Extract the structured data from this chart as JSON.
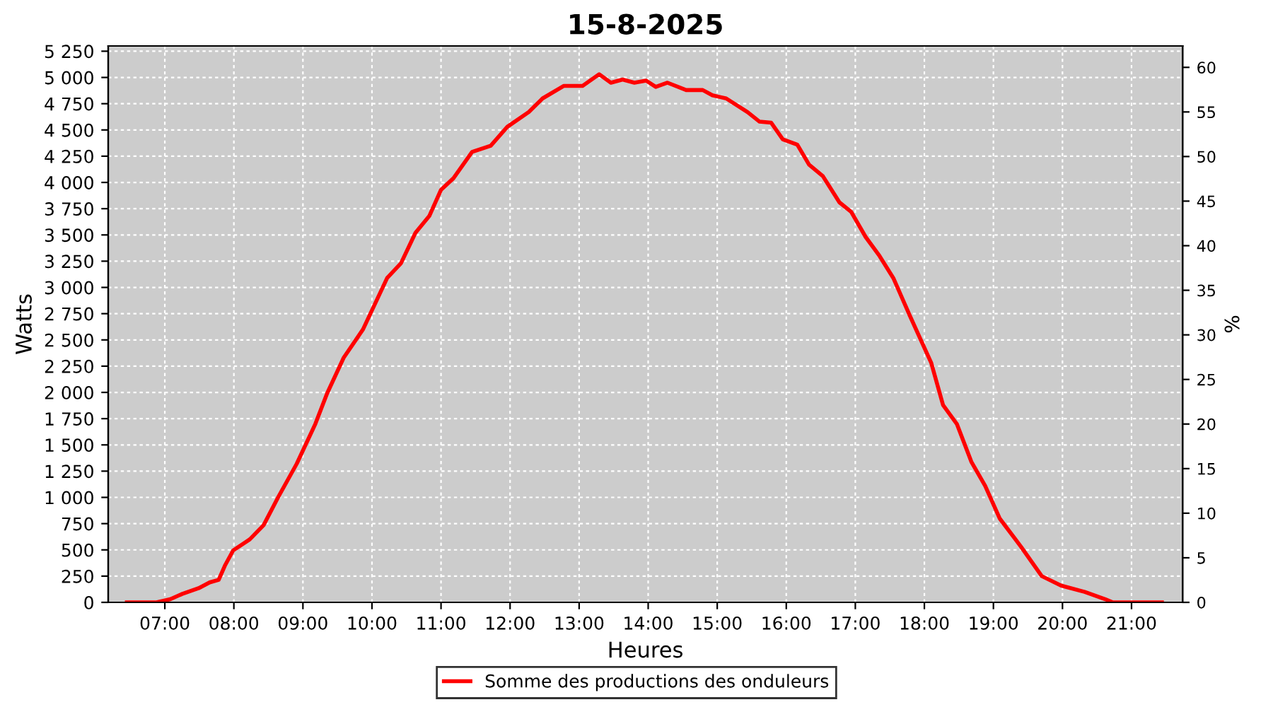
{
  "chart_data": {
    "type": "line",
    "title": "15-8-2025",
    "xlabel": "Heures",
    "ylabel": "Watts",
    "y2label": "%",
    "xlim": [
      6.18,
      21.74
    ],
    "xticks": [
      {
        "value": 7,
        "label": "07:00"
      },
      {
        "value": 8,
        "label": "08:00"
      },
      {
        "value": 9,
        "label": "09:00"
      },
      {
        "value": 10,
        "label": "10:00"
      },
      {
        "value": 11,
        "label": "11:00"
      },
      {
        "value": 12,
        "label": "12:00"
      },
      {
        "value": 13,
        "label": "13:00"
      },
      {
        "value": 14,
        "label": "14:00"
      },
      {
        "value": 15,
        "label": "15:00"
      },
      {
        "value": 16,
        "label": "16:00"
      },
      {
        "value": 17,
        "label": "17:00"
      },
      {
        "value": 18,
        "label": "18:00"
      },
      {
        "value": 19,
        "label": "19:00"
      },
      {
        "value": 20,
        "label": "20:00"
      },
      {
        "value": 21,
        "label": "21:00"
      }
    ],
    "ylim": [
      0,
      5300
    ],
    "yticks": [
      0,
      250,
      500,
      750,
      {
        "value": 1000,
        "label": "1 000"
      },
      {
        "value": 1250,
        "label": "1 250"
      },
      {
        "value": 1500,
        "label": "1 500"
      },
      {
        "value": 1750,
        "label": "1 750"
      },
      {
        "value": 2000,
        "label": "2 000"
      },
      {
        "value": 2250,
        "label": "2 250"
      },
      {
        "value": 2500,
        "label": "2 500"
      },
      {
        "value": 2750,
        "label": "2 750"
      },
      {
        "value": 3000,
        "label": "3 000"
      },
      {
        "value": 3250,
        "label": "3 250"
      },
      {
        "value": 3500,
        "label": "3 500"
      },
      {
        "value": 3750,
        "label": "3 750"
      },
      {
        "value": 4000,
        "label": "4 000"
      },
      {
        "value": 4250,
        "label": "4 250"
      },
      {
        "value": 4500,
        "label": "4 500"
      },
      {
        "value": 4750,
        "label": "4 750"
      },
      {
        "value": 5000,
        "label": "5 000"
      },
      {
        "value": 5250,
        "label": "5 250"
      }
    ],
    "y2lim": [
      0,
      62.4
    ],
    "y2ticks": [
      0,
      5,
      10,
      15,
      20,
      25,
      30,
      35,
      40,
      45,
      50,
      55,
      60
    ],
    "grid": true,
    "legend": "bottom",
    "line_style": "solid",
    "marker": "none",
    "series": [
      {
        "name": "Somme des productions des onduleurs",
        "color": "#ff0000",
        "x": [
          6.45,
          6.88,
          7.08,
          7.25,
          7.49,
          7.65,
          7.78,
          7.87,
          7.99,
          8.23,
          8.43,
          8.64,
          8.91,
          9.18,
          9.35,
          9.59,
          9.87,
          10.22,
          10.42,
          10.63,
          10.83,
          11.0,
          11.18,
          11.45,
          11.72,
          11.96,
          12.27,
          12.47,
          12.78,
          13.05,
          13.29,
          13.46,
          13.63,
          13.8,
          13.97,
          14.11,
          14.28,
          14.55,
          14.79,
          14.93,
          15.13,
          15.44,
          15.61,
          15.78,
          15.95,
          16.16,
          16.33,
          16.53,
          16.77,
          16.94,
          17.15,
          17.35,
          17.55,
          17.79,
          18.1,
          18.27,
          18.47,
          18.68,
          18.88,
          19.09,
          19.4,
          19.7,
          19.98,
          20.32,
          20.62,
          20.73,
          21.44
        ],
        "values": [
          0,
          0,
          30,
          80,
          135,
          190,
          215,
          350,
          495,
          600,
          735,
          1000,
          1320,
          1700,
          1990,
          2330,
          2600,
          3090,
          3230,
          3520,
          3680,
          3930,
          4040,
          4290,
          4350,
          4530,
          4670,
          4800,
          4920,
          4920,
          5030,
          4950,
          4980,
          4950,
          4970,
          4910,
          4950,
          4880,
          4880,
          4830,
          4800,
          4670,
          4580,
          4570,
          4410,
          4360,
          4170,
          4060,
          3810,
          3720,
          3480,
          3300,
          3090,
          2730,
          2280,
          1880,
          1700,
          1340,
          1110,
          800,
          530,
          250,
          160,
          100,
          30,
          0,
          0
        ]
      }
    ]
  }
}
